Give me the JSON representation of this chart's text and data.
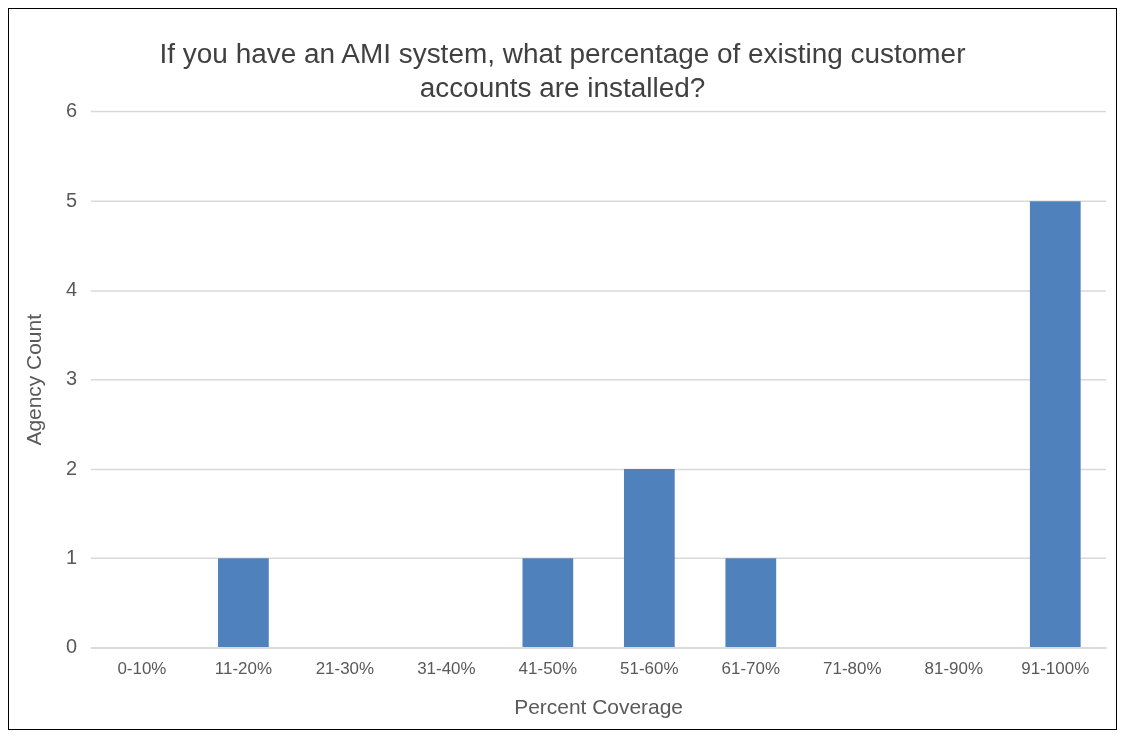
{
  "chart_data": {
    "type": "bar",
    "title": "If you have an AMI system, what percentage of existing customer accounts are installed?",
    "xlabel": "Percent Coverage",
    "ylabel": "Agency Count",
    "categories": [
      "0-10%",
      "11-20%",
      "21-30%",
      "31-40%",
      "41-50%",
      "51-60%",
      "61-70%",
      "71-80%",
      "81-90%",
      "91-100%"
    ],
    "values": [
      0,
      1,
      0,
      0,
      1,
      2,
      1,
      0,
      0,
      5
    ],
    "color": "#4f81bd",
    "ylim": [
      0,
      6
    ],
    "yticks": [
      0,
      1,
      2,
      3,
      4,
      5,
      6
    ],
    "grid": "y",
    "legend": false
  }
}
